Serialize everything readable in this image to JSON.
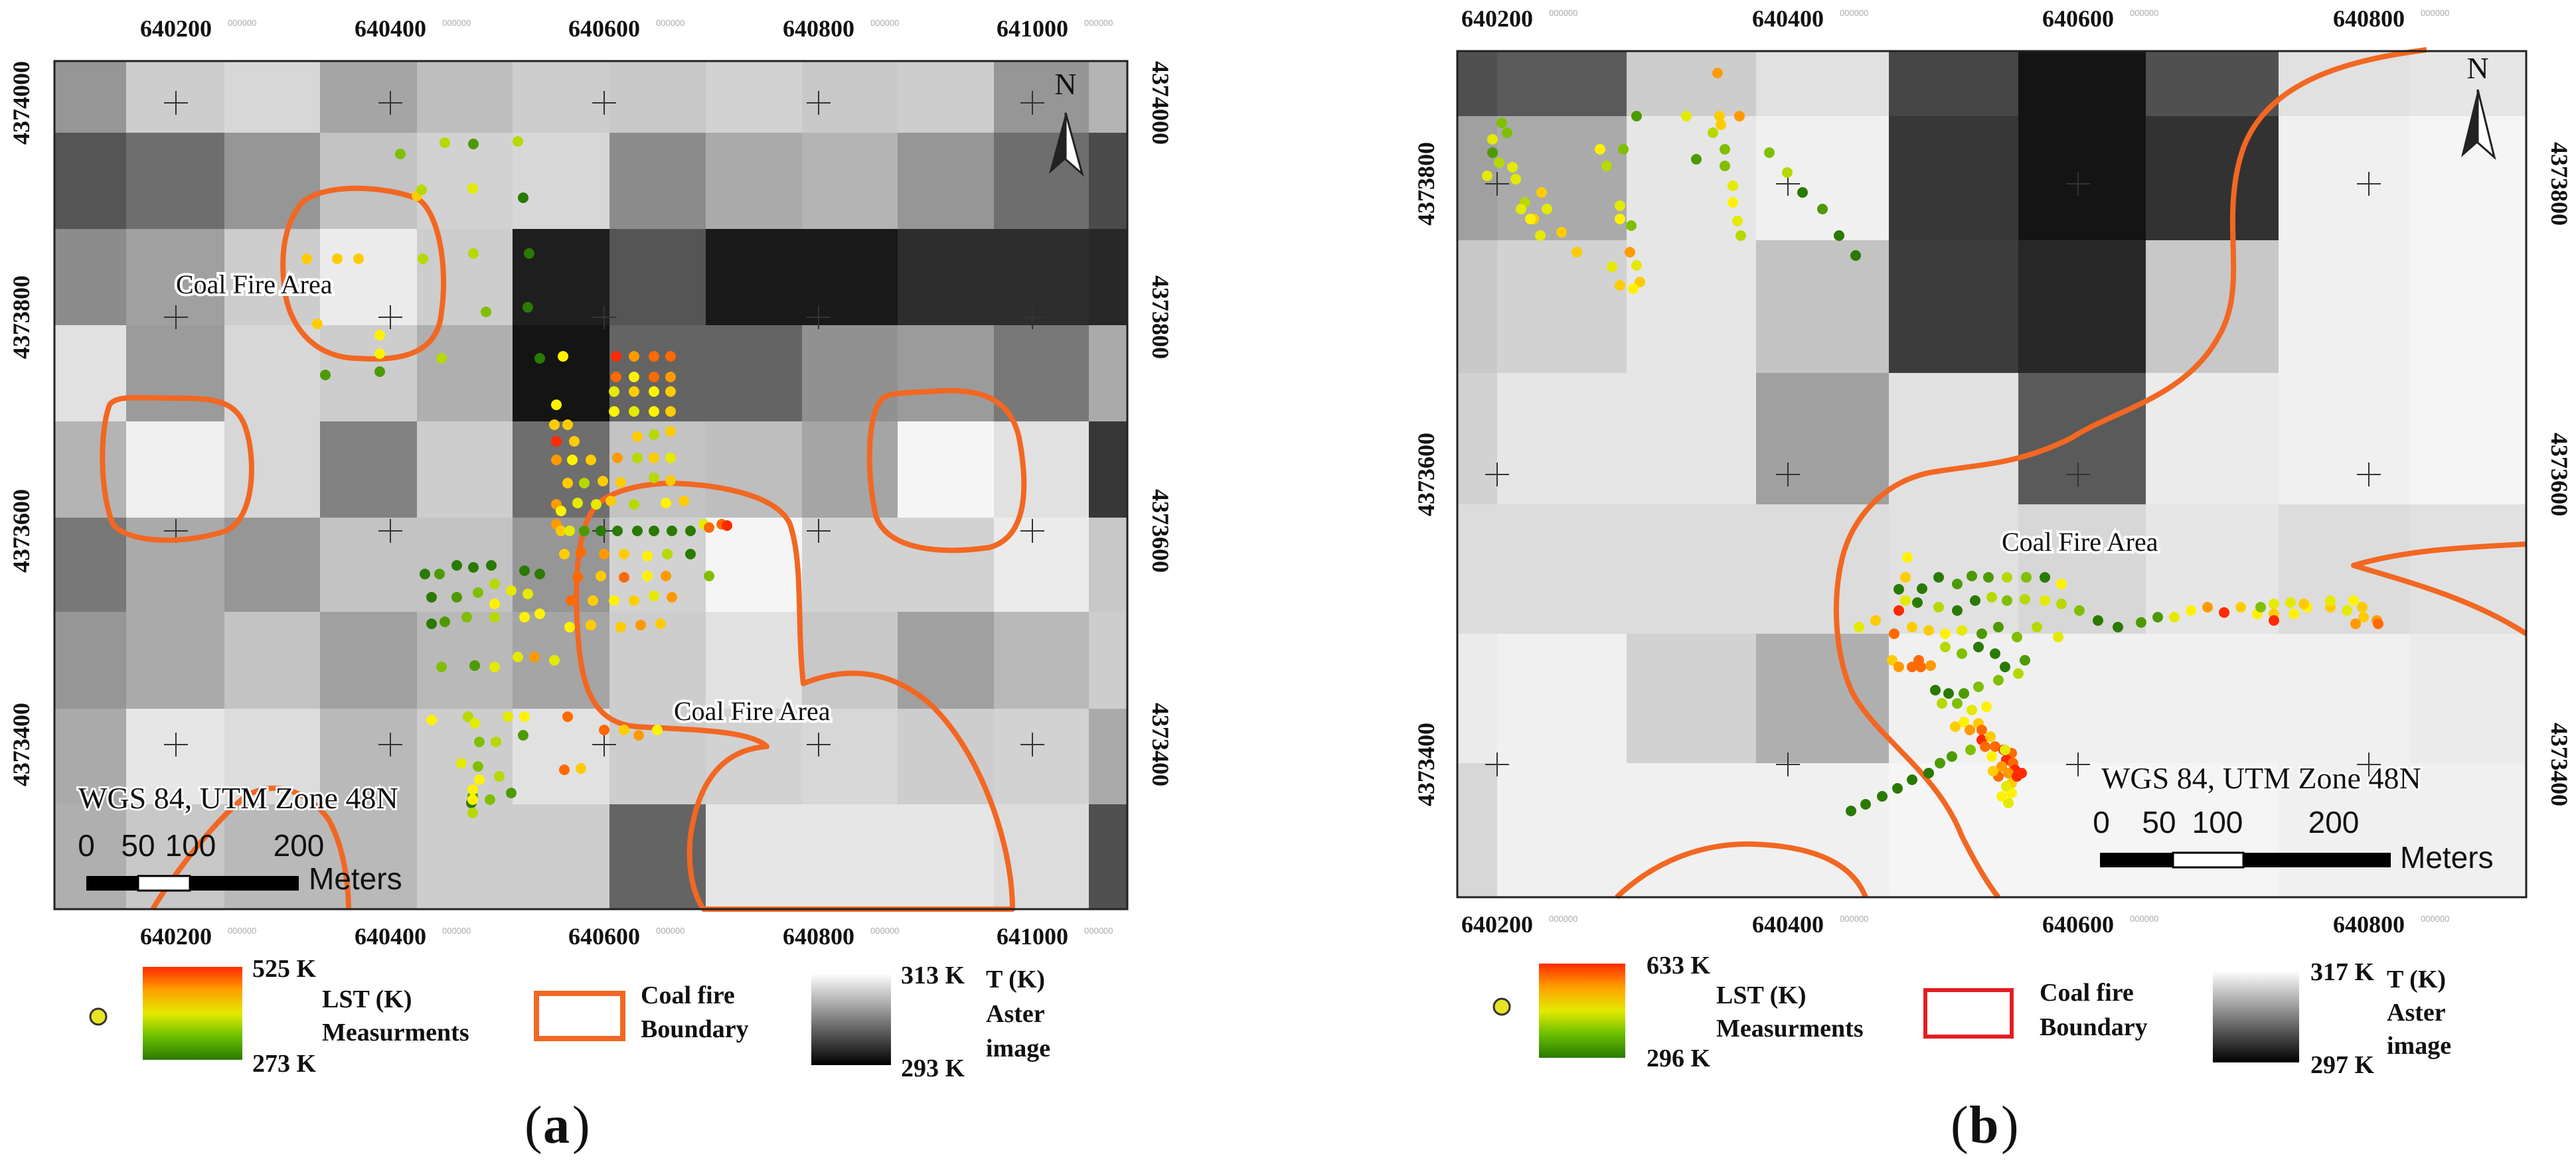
{
  "colors": {
    "boundary_orange": "#f26722",
    "boundary_red": "#e31e24",
    "lst_high": "#ff2a00",
    "lst_mid": "#e4ea00",
    "lst_low": "#2a7a00",
    "point_legend": "#e9e325"
  },
  "panel_a": {
    "caption_letter": "a",
    "x_ticks": [
      "640200",
      "640400",
      "640600",
      "640800",
      "641000"
    ],
    "y_ticks": [
      "4374000",
      "4373800",
      "4373600",
      "4373400"
    ],
    "tick_suffix": "000000",
    "north_label": "N",
    "labels": {
      "coal_fire_1": "Coal Fire Area",
      "coal_fire_2": "Coal Fire Area"
    },
    "projection": "WGS 84, UTM Zone 48N",
    "scale": {
      "n0": "0",
      "n1": "50",
      "n2": "100",
      "n3": "200",
      "unit": "Meters"
    },
    "legend": {
      "lst_max": "525 K",
      "lst_min": "273 K",
      "lst_title_1": "LST (K)",
      "lst_title_2": "Measurments",
      "boundary_title_1": "Coal fire",
      "boundary_title_2": "Boundary",
      "aster_max": "313 K",
      "aster_min": "293 K",
      "aster_title_1": "T (K)",
      "aster_title_2": "Aster",
      "aster_title_3": "image"
    }
  },
  "panel_b": {
    "caption_letter": "b",
    "x_ticks": [
      "640200",
      "640400",
      "640600",
      "640800"
    ],
    "y_ticks": [
      "4373800",
      "4373600",
      "4373400"
    ],
    "tick_suffix": "000000",
    "north_label": "N",
    "labels": {
      "coal_fire_1": "Coal Fire Area"
    },
    "projection": "WGS 84, UTM Zone 48N",
    "scale": {
      "n0": "0",
      "n1": "50",
      "n2": "100",
      "n3": "200",
      "unit": "Meters"
    },
    "legend": {
      "lst_max": "633 K",
      "lst_min": "296 K",
      "lst_title_1": "LST (K)",
      "lst_title_2": "Measurments",
      "boundary_title_1": "Coal fire",
      "boundary_title_2": "Boundary",
      "aster_max": "317 K",
      "aster_min": "297 K",
      "aster_title_1": "T (K)",
      "aster_title_2": "Aster",
      "aster_title_3": "image"
    }
  }
}
